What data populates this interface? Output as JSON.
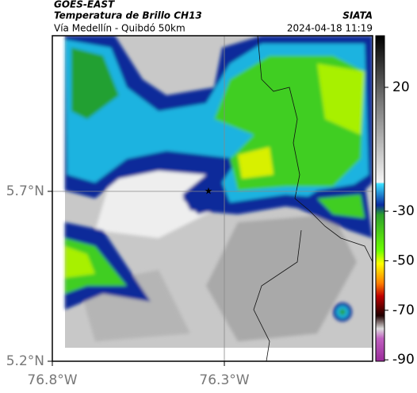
{
  "header": {
    "satellite": "GOES-EAST",
    "product": "Temperatura de Brillo CH13",
    "region": "Vía Medellín - Quibdó 50km",
    "source": "SIATA",
    "datetime": "2024-04-18 11:19"
  },
  "map": {
    "lat_labels": [
      "5.7°N",
      "5.2°N"
    ],
    "lon_labels": [
      "76.8°W",
      "76.3°W"
    ]
  },
  "colorbar": {
    "ticks": [
      20,
      -30,
      -50,
      -70,
      -90
    ]
  }
}
